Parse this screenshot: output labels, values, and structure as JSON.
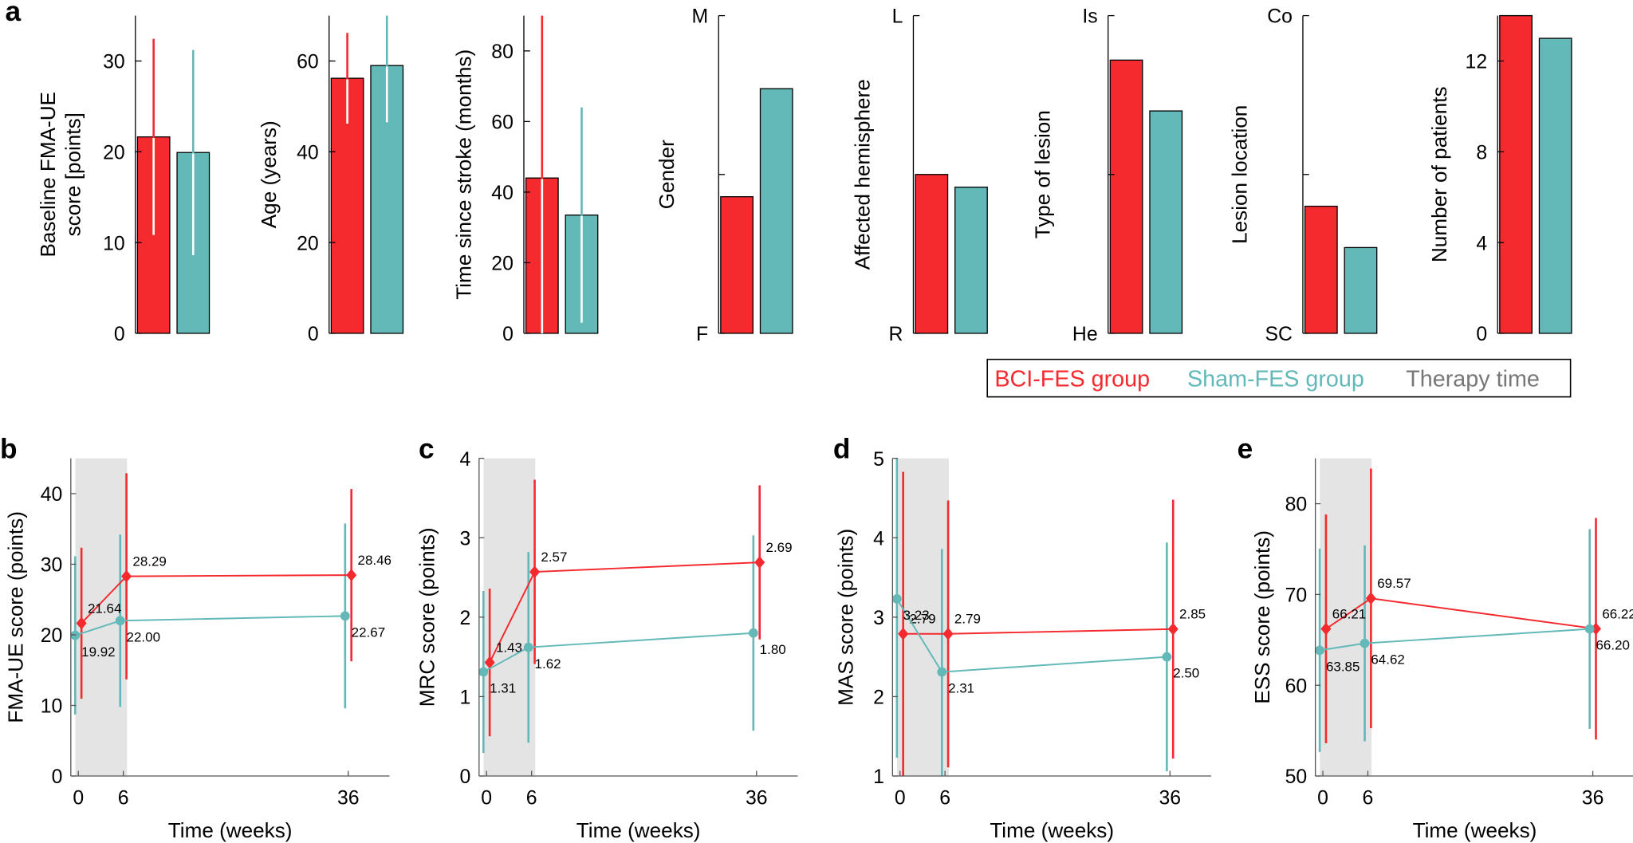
{
  "chart_data": [
    {
      "type": "bar",
      "panel": "a",
      "ylabel": [
        "Baseline FMA-UE",
        "score [points]"
      ],
      "ylim": [
        0,
        35
      ],
      "yticks": [
        0,
        10,
        20,
        30
      ],
      "series": [
        {
          "name": "BCI-FES group",
          "color": "#f42a2f",
          "values": [
            21.64
          ],
          "errors": [
            10.8
          ]
        },
        {
          "name": "Sham-FES group",
          "color": "#63b8b8",
          "values": [
            19.92
          ],
          "errors": [
            11.3
          ]
        }
      ]
    },
    {
      "type": "bar",
      "ylabel": "Age (years)",
      "ylim": [
        0,
        70
      ],
      "yticks": [
        0,
        20,
        40,
        60
      ],
      "series": [
        {
          "name": "BCI-FES group",
          "color": "#f42a2f",
          "values": [
            56.2
          ],
          "errors": [
            10
          ]
        },
        {
          "name": "Sham-FES group",
          "color": "#63b8b8",
          "values": [
            59
          ],
          "errors": [
            12.5
          ]
        }
      ]
    },
    {
      "type": "bar",
      "ylabel": "Time since stroke (months)",
      "ylim": [
        0,
        90
      ],
      "yticks": [
        0,
        20,
        40,
        60,
        80
      ],
      "series": [
        {
          "name": "BCI-FES group",
          "color": "#f42a2f",
          "values": [
            44
          ],
          "errors": [
            50
          ]
        },
        {
          "name": "Sham-FES group",
          "color": "#63b8b8",
          "values": [
            33.5
          ],
          "errors": [
            30.5
          ]
        }
      ]
    },
    {
      "type": "bar",
      "ylabel": "Gender",
      "ylim": [
        0,
        1
      ],
      "yticks": [
        {
          "value": 0,
          "label": "F"
        },
        {
          "value": 1,
          "label": "M"
        }
      ],
      "minor_yticks": [
        0.5
      ],
      "series": [
        {
          "name": "BCI-FES group",
          "color": "#f42a2f",
          "values": [
            0.43
          ]
        },
        {
          "name": "Sham-FES group",
          "color": "#63b8b8",
          "values": [
            0.77
          ]
        }
      ]
    },
    {
      "type": "bar",
      "ylabel": "Affected hemisphere",
      "ylim": [
        0,
        1
      ],
      "yticks": [
        {
          "value": 0,
          "label": "R"
        },
        {
          "value": 1,
          "label": "L"
        }
      ],
      "series": [
        {
          "name": "BCI-FES group",
          "color": "#f42a2f",
          "values": [
            0.5
          ]
        },
        {
          "name": "Sham-FES group",
          "color": "#63b8b8",
          "values": [
            0.46
          ]
        }
      ]
    },
    {
      "type": "bar",
      "ylabel": "Type of lesion",
      "ylim": [
        0,
        1
      ],
      "yticks": [
        {
          "value": 0,
          "label": "He"
        },
        {
          "value": 1,
          "label": "Is"
        }
      ],
      "minor_yticks": [
        0.5
      ],
      "series": [
        {
          "name": "BCI-FES group",
          "color": "#f42a2f",
          "values": [
            0.86
          ]
        },
        {
          "name": "Sham-FES group",
          "color": "#63b8b8",
          "values": [
            0.7
          ]
        }
      ]
    },
    {
      "type": "bar",
      "ylabel": "Lesion location",
      "ylim": [
        0,
        1
      ],
      "yticks": [
        {
          "value": 0,
          "label": "SC"
        },
        {
          "value": 1,
          "label": "Co"
        }
      ],
      "minor_yticks": [
        0.5
      ],
      "series": [
        {
          "name": "BCI-FES group",
          "color": "#f42a2f",
          "values": [
            0.4
          ]
        },
        {
          "name": "Sham-FES group",
          "color": "#63b8b8",
          "values": [
            0.27
          ]
        }
      ]
    },
    {
      "type": "bar",
      "ylabel": "Number of patients",
      "ylim": [
        0,
        14
      ],
      "yticks": [
        0,
        4,
        8,
        12
      ],
      "series": [
        {
          "name": "BCI-FES group",
          "color": "#f42a2f",
          "values": [
            14
          ]
        },
        {
          "name": "Sham-FES group",
          "color": "#63b8b8",
          "values": [
            13
          ]
        }
      ]
    },
    {
      "type": "line",
      "panel": "b",
      "ylabel": "FMA-UE score (points)",
      "xlabel": "Time (weeks)",
      "shade_label": "Therapy time",
      "shade": [
        -0.4,
        6.5
      ],
      "shade_color": "#e4e4e4",
      "x": [
        0,
        6,
        36
      ],
      "xlim": [
        -1,
        41.5
      ],
      "xticks": [
        0,
        6,
        36
      ],
      "ylim": [
        0,
        45
      ],
      "yticks": [
        0,
        10,
        20,
        30,
        40
      ],
      "series": [
        {
          "name": "BCI-FES group",
          "color": "#f42a2f",
          "marker": "diamond",
          "values": [
            21.64,
            28.29,
            28.46
          ],
          "value_labels": [
            "21.64",
            "28.29",
            "28.46"
          ],
          "errors": [
            10.7,
            14.6,
            12.2
          ]
        },
        {
          "name": "Sham-FES group",
          "color": "#63b8b8",
          "marker": "circle",
          "values": [
            19.92,
            22,
            22.67
          ],
          "value_labels": [
            "19.92",
            "22.00",
            "22.67"
          ],
          "errors": [
            11.2,
            12.2,
            13.1
          ]
        }
      ]
    },
    {
      "type": "line",
      "panel": "c",
      "ylabel": "MRC score (points)",
      "xlabel": "Time (weeks)",
      "shade": [
        -0.4,
        6.5
      ],
      "shade_color": "#e4e4e4",
      "x": [
        0,
        6,
        36
      ],
      "xlim": [
        -1,
        41.5
      ],
      "xticks": [
        0,
        6,
        36
      ],
      "ylim": [
        0,
        4
      ],
      "yticks": [
        0,
        1,
        2,
        3,
        4
      ],
      "series": [
        {
          "name": "BCI-FES group",
          "color": "#f42a2f",
          "marker": "diamond",
          "values": [
            1.43,
            2.57,
            2.69
          ],
          "value_labels": [
            "1.43",
            "2.57",
            "2.69"
          ],
          "errors": [
            0.93,
            1.16,
            0.97
          ]
        },
        {
          "name": "Sham-FES group",
          "color": "#63b8b8",
          "marker": "circle",
          "values": [
            1.31,
            1.62,
            1.8
          ],
          "value_labels": [
            "1.31",
            "1.62",
            "1.80"
          ],
          "errors": [
            1.02,
            1.2,
            1.23
          ]
        }
      ]
    },
    {
      "type": "line",
      "panel": "d",
      "ylabel": "MAS score (points)",
      "xlabel": "Time (weeks)",
      "shade": [
        -0.4,
        6.5
      ],
      "shade_color": "#e4e4e4",
      "x": [
        0,
        6,
        36
      ],
      "xlim": [
        -1,
        41.5
      ],
      "xticks": [
        0,
        6,
        36
      ],
      "ylim": [
        1,
        5
      ],
      "yticks": [
        1,
        2,
        3,
        4,
        5
      ],
      "series": [
        {
          "name": "BCI-FES group",
          "color": "#f42a2f",
          "marker": "diamond",
          "values": [
            2.79,
            2.79,
            2.85
          ],
          "value_labels": [
            "2.79",
            "2.79",
            "2.85"
          ],
          "errors": [
            2.04,
            1.68,
            1.63
          ]
        },
        {
          "name": "Sham-FES group",
          "color": "#63b8b8",
          "marker": "circle",
          "values": [
            3.23,
            2.31,
            2.5
          ],
          "value_labels": [
            "3.23",
            "2.31",
            "2.50"
          ],
          "errors": [
            2.0,
            1.55,
            1.44
          ]
        }
      ]
    },
    {
      "type": "line",
      "panel": "e",
      "ylabel": "ESS score (points)",
      "xlabel": "Time (weeks)",
      "shade": [
        -0.4,
        6.5
      ],
      "shade_color": "#e4e4e4",
      "x": [
        0,
        6,
        36
      ],
      "xlim": [
        -1,
        41.5
      ],
      "xticks": [
        0,
        6,
        36
      ],
      "ylim": [
        50,
        85
      ],
      "yticks": [
        50,
        60,
        70,
        80
      ],
      "series": [
        {
          "name": "BCI-FES group",
          "color": "#f42a2f",
          "marker": "diamond",
          "values": [
            66.21,
            69.57,
            66.22
          ],
          "value_labels": [
            "66.21",
            "69.57",
            "66.22"
          ],
          "errors": [
            12.6,
            14.3,
            12.2
          ]
        },
        {
          "name": "Sham-FES group",
          "color": "#63b8b8",
          "marker": "circle",
          "values": [
            63.85,
            64.62,
            66.2
          ],
          "value_labels": [
            "63.85",
            "64.62",
            "66.20"
          ],
          "errors": [
            11.2,
            10.8,
            11
          ]
        }
      ]
    }
  ]
}
